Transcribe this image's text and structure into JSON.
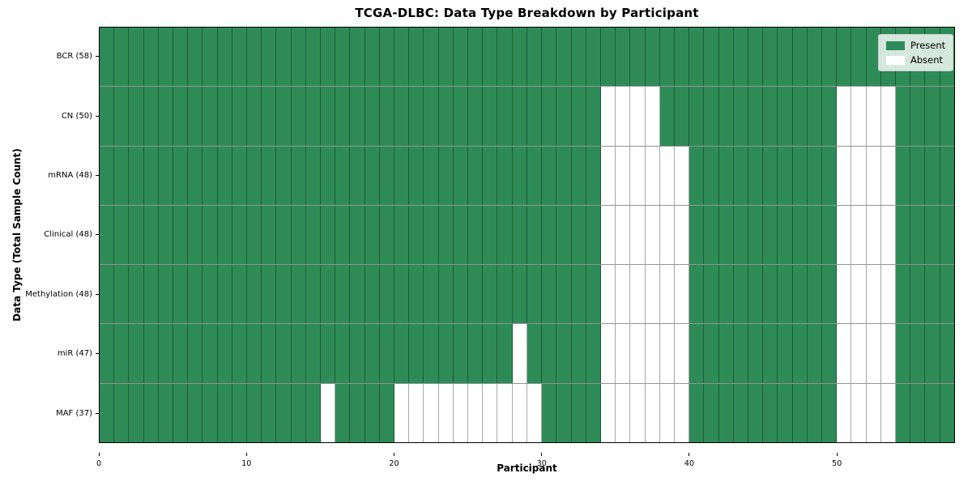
{
  "chart_data": {
    "type": "heatmap",
    "title": "TCGA-DLBC: Data Type Breakdown by Participant",
    "xlabel": "Participant",
    "ylabel": "Data Type (Total Sample Count)",
    "xlim": [
      0,
      58
    ],
    "n_participants": 58,
    "x_ticks": [
      0,
      10,
      20,
      30,
      40,
      50
    ],
    "grid": true,
    "rows": [
      {
        "label": "BCR (58)",
        "total": 58,
        "absent_participants": []
      },
      {
        "label": "CN (50)",
        "total": 50,
        "absent_participants": [
          34,
          35,
          36,
          37,
          50,
          51,
          52,
          53
        ]
      },
      {
        "label": "mRNA (48)",
        "total": 48,
        "absent_participants": [
          34,
          35,
          36,
          37,
          38,
          39,
          50,
          51,
          52,
          53
        ]
      },
      {
        "label": "Clinical (48)",
        "total": 48,
        "absent_participants": [
          34,
          35,
          36,
          37,
          38,
          39,
          50,
          51,
          52,
          53
        ]
      },
      {
        "label": "Methylation (48)",
        "total": 48,
        "absent_participants": [
          34,
          35,
          36,
          37,
          38,
          39,
          50,
          51,
          52,
          53
        ]
      },
      {
        "label": "miR (47)",
        "total": 47,
        "absent_participants": [
          28,
          34,
          35,
          36,
          37,
          38,
          39,
          50,
          51,
          52,
          53
        ]
      },
      {
        "label": "MAF (37)",
        "total": 37,
        "absent_participants": [
          15,
          20,
          21,
          22,
          23,
          24,
          25,
          26,
          27,
          28,
          29,
          34,
          35,
          36,
          37,
          38,
          39,
          50,
          51,
          52,
          53
        ]
      }
    ],
    "legend": {
      "position": "upper right",
      "entries": [
        {
          "label": "Present",
          "color": "#2e8b57"
        },
        {
          "label": "Absent",
          "color": "#ffffff"
        }
      ]
    },
    "colors": {
      "present": "#2e8b57",
      "absent": "#ffffff",
      "grid_line": "rgba(0,0,0,0.38)",
      "frame": "#000000"
    }
  }
}
